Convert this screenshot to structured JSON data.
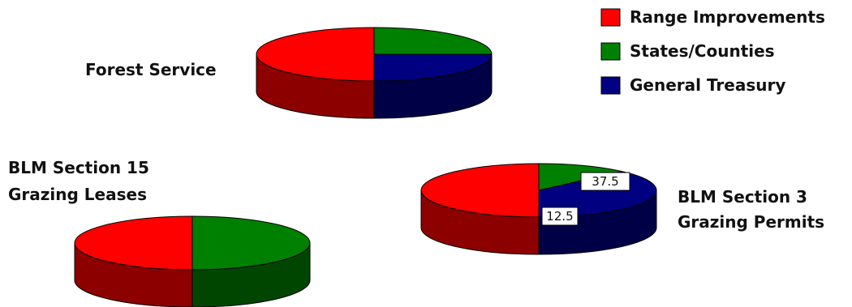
{
  "chart_data": {
    "type": "pie",
    "legend": {
      "placement": "top-right",
      "entries": [
        {
          "label": "Range Improvements",
          "color": "#ff0000"
        },
        {
          "label": "States/Counties",
          "color": "#008000"
        },
        {
          "label": "General Treasury",
          "color": "#000080"
        }
      ]
    },
    "pies": [
      {
        "key": "forest",
        "title": [
          "Forest Service"
        ],
        "slices": [
          {
            "label": "Range Improvements",
            "value": 50,
            "color": "#ff0000"
          },
          {
            "label": "States/Counties",
            "value": 25,
            "color": "#008000"
          },
          {
            "label": "General Treasury",
            "value": 25,
            "color": "#000080"
          }
        ],
        "data_labels": []
      },
      {
        "key": "blm15",
        "title": [
          "BLM Section 15",
          "Grazing Leases"
        ],
        "slices": [
          {
            "label": "Range Improvements",
            "value": 50,
            "color": "#ff0000"
          },
          {
            "label": "States/Counties",
            "value": 50,
            "color": "#008000"
          }
        ],
        "data_labels": []
      },
      {
        "key": "blm3",
        "title": [
          "BLM Section 3",
          "Grazing Permits"
        ],
        "slices": [
          {
            "label": "Range Improvements",
            "value": 50,
            "color": "#ff0000"
          },
          {
            "label": "States/Counties",
            "value": 12.5,
            "color": "#008000"
          },
          {
            "label": "General Treasury",
            "value": 37.5,
            "color": "#000080"
          }
        ],
        "data_labels": [
          {
            "slice": "General Treasury",
            "text": "37.5"
          },
          {
            "slice": "States/Counties",
            "text": "12.5"
          }
        ]
      }
    ]
  }
}
